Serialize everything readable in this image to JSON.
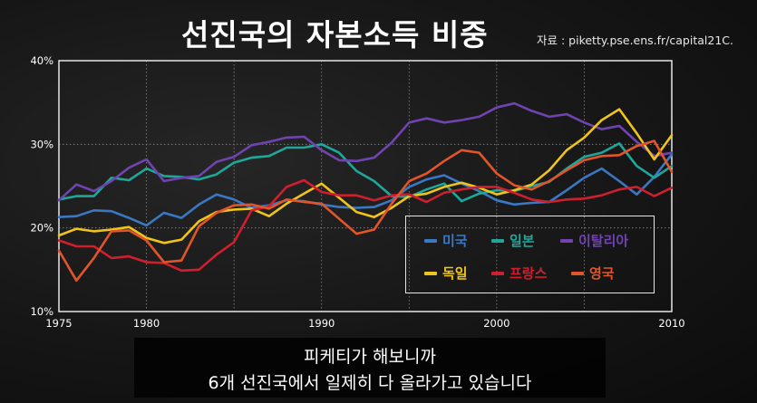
{
  "header": {
    "title": "선진국의 자본소득 비중",
    "source": "자료 : piketty.pse.ens.fr/capital21C."
  },
  "subtitle": {
    "line1": "피케티가 해보니까",
    "line2": "6개 선진국에서 일제히 다 올라가고 있습니다"
  },
  "chart_data": {
    "type": "line",
    "title": "선진국의 자본소득 비중",
    "xlim": [
      1975,
      2010
    ],
    "ylim": [
      10,
      40
    ],
    "x_ticks": [
      1975,
      1980,
      1990,
      2000,
      2010
    ],
    "x_tick_labels": [
      "1975",
      "1980",
      "1990",
      "2000",
      "2010"
    ],
    "y_ticks": [
      10,
      20,
      30,
      40
    ],
    "y_tick_labels": [
      "10%",
      "20%",
      "30%",
      "40%"
    ],
    "grid": true,
    "legend_position": "lower-right",
    "x": [
      1975,
      1976,
      1977,
      1978,
      1979,
      1980,
      1981,
      1982,
      1983,
      1984,
      1985,
      1986,
      1987,
      1988,
      1989,
      1990,
      1991,
      1992,
      1993,
      1994,
      1995,
      1996,
      1997,
      1998,
      1999,
      2000,
      2001,
      2002,
      2003,
      2004,
      2005,
      2006,
      2007,
      2008,
      2009,
      2010
    ],
    "series": [
      {
        "name": "미국",
        "color": "#3a78c4",
        "values": [
          21.3,
          21.4,
          22.1,
          22.0,
          21.2,
          20.3,
          21.8,
          21.2,
          22.8,
          24.0,
          23.4,
          22.4,
          22.7,
          23.3,
          23.2,
          22.8,
          22.5,
          22.4,
          22.5,
          23.3,
          24.9,
          25.8,
          26.3,
          25.3,
          24.4,
          23.3,
          22.8,
          23.0,
          23.1,
          24.5,
          26.0,
          27.1,
          25.6,
          24.0,
          26.1,
          28.8
        ]
      },
      {
        "name": "일본",
        "color": "#1fa79a",
        "values": [
          23.4,
          23.8,
          23.8,
          26.0,
          25.7,
          27.1,
          26.2,
          26.1,
          25.8,
          26.4,
          27.8,
          28.4,
          28.6,
          29.6,
          29.6,
          30.0,
          29.0,
          26.8,
          25.6,
          23.8,
          23.7,
          24.6,
          25.3,
          23.2,
          24.1,
          24.5,
          24.4,
          25.0,
          25.5,
          27.1,
          28.5,
          29.0,
          30.1,
          27.4,
          26.0,
          27.4
        ]
      },
      {
        "name": "이탈리아",
        "color": "#7044b0",
        "values": [
          23.3,
          25.2,
          24.4,
          25.6,
          27.2,
          28.2,
          25.6,
          26.0,
          26.2,
          27.9,
          28.5,
          29.9,
          30.3,
          30.8,
          30.9,
          29.3,
          28.1,
          28.0,
          28.4,
          30.2,
          32.6,
          33.1,
          32.6,
          32.9,
          33.3,
          34.4,
          34.9,
          34.0,
          33.3,
          33.6,
          32.6,
          31.8,
          32.2,
          30.3,
          28.6,
          29.0
        ]
      },
      {
        "name": "독일",
        "color": "#f0c419",
        "values": [
          19.1,
          19.9,
          19.6,
          19.8,
          20.1,
          18.8,
          18.2,
          18.6,
          20.8,
          21.9,
          22.2,
          22.3,
          21.4,
          22.9,
          24.1,
          25.3,
          23.6,
          21.9,
          21.3,
          22.4,
          23.8,
          24.1,
          24.9,
          25.4,
          24.8,
          24.0,
          24.5,
          25.2,
          26.9,
          29.3,
          30.8,
          32.9,
          34.2,
          31.3,
          28.2,
          31.1
        ]
      },
      {
        "name": "프랑스",
        "color": "#cf1f2e",
        "values": [
          18.5,
          17.8,
          17.8,
          16.4,
          16.6,
          15.9,
          15.8,
          14.9,
          15.0,
          16.8,
          18.3,
          22.1,
          22.6,
          24.9,
          25.7,
          24.3,
          23.9,
          23.9,
          23.3,
          23.9,
          24.0,
          23.1,
          24.2,
          24.6,
          24.9,
          24.9,
          24.2,
          23.4,
          23.1,
          23.4,
          23.5,
          23.9,
          24.6,
          24.9,
          23.8,
          24.8
        ]
      },
      {
        "name": "영국",
        "color": "#e2552a",
        "values": [
          17.3,
          13.7,
          16.4,
          19.6,
          19.7,
          18.5,
          15.9,
          16.1,
          20.2,
          21.8,
          22.7,
          22.8,
          22.3,
          23.4,
          23.1,
          22.9,
          21.1,
          19.3,
          19.8,
          22.9,
          25.6,
          26.5,
          28.0,
          29.3,
          29.0,
          26.5,
          25.1,
          24.6,
          25.6,
          26.9,
          28.1,
          28.6,
          28.7,
          29.8,
          30.4,
          26.7
        ]
      }
    ]
  }
}
